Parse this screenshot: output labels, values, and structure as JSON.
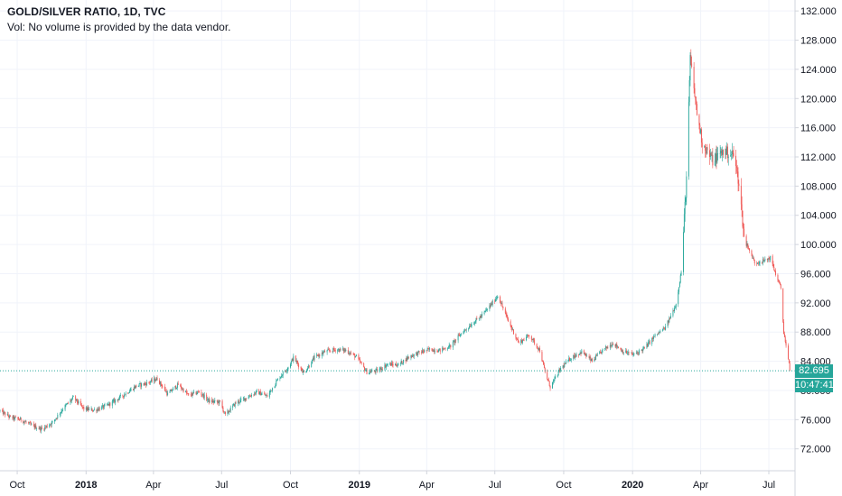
{
  "header": {
    "symbol": "GOLD/SILVER RATIO, 1D, TVC",
    "volume_note": "Vol: No volume is provided by the data vendor."
  },
  "last_price_label": "82.695",
  "countdown_label": "10:47:41",
  "colors": {
    "up": "#26a69a",
    "down": "#ef5350",
    "price_line": "#26a69a",
    "grid": "#f0f3fa",
    "axis_text": "#131722"
  },
  "chart_data": {
    "type": "line",
    "title": "GOLD/SILVER RATIO, 1D, TVC",
    "x_tick_labels": [
      {
        "label": "Oct",
        "date": "2017-10-01",
        "bold": false
      },
      {
        "label": "2018",
        "date": "2018-01-01",
        "bold": true
      },
      {
        "label": "Apr",
        "date": "2018-04-01",
        "bold": false
      },
      {
        "label": "Jul",
        "date": "2018-07-01",
        "bold": false
      },
      {
        "label": "Oct",
        "date": "2018-10-01",
        "bold": false
      },
      {
        "label": "2019",
        "date": "2019-01-01",
        "bold": true
      },
      {
        "label": "Apr",
        "date": "2019-04-01",
        "bold": false
      },
      {
        "label": "Jul",
        "date": "2019-07-01",
        "bold": false
      },
      {
        "label": "Oct",
        "date": "2019-10-01",
        "bold": false
      },
      {
        "label": "2020",
        "date": "2020-01-01",
        "bold": true
      },
      {
        "label": "Apr",
        "date": "2020-04-01",
        "bold": false
      },
      {
        "label": "Jul",
        "date": "2020-07-01",
        "bold": false
      }
    ],
    "y_tick_labels": [
      "72.000",
      "76.000",
      "80.000",
      "84.000",
      "88.000",
      "92.000",
      "96.000",
      "100.000",
      "104.000",
      "108.000",
      "112.000",
      "116.000",
      "120.000",
      "124.000",
      "128.000",
      "132.000"
    ],
    "ylim": [
      69.0,
      133.5
    ],
    "xlim": [
      "2017-09-08",
      "2020-08-05"
    ],
    "grid": true,
    "legend": "none",
    "last_value": 82.695,
    "series": [
      {
        "values": [
          [
            "2017-09-08",
            77.2
          ],
          [
            "2017-09-22",
            76.3
          ],
          [
            "2017-10-06",
            76.0
          ],
          [
            "2017-10-20",
            75.2
          ],
          [
            "2017-11-03",
            74.7
          ],
          [
            "2017-11-17",
            75.6
          ],
          [
            "2017-12-01",
            77.5
          ],
          [
            "2017-12-15",
            79.0
          ],
          [
            "2017-12-29",
            77.5
          ],
          [
            "2018-01-12",
            77.3
          ],
          [
            "2018-01-26",
            77.8
          ],
          [
            "2018-02-09",
            78.6
          ],
          [
            "2018-02-23",
            79.6
          ],
          [
            "2018-03-09",
            80.6
          ],
          [
            "2018-03-23",
            81.0
          ],
          [
            "2018-04-06",
            81.6
          ],
          [
            "2018-04-20",
            79.5
          ],
          [
            "2018-05-04",
            80.8
          ],
          [
            "2018-05-18",
            79.3
          ],
          [
            "2018-06-01",
            79.8
          ],
          [
            "2018-06-15",
            78.5
          ],
          [
            "2018-06-29",
            78.4
          ],
          [
            "2018-07-06",
            76.6
          ],
          [
            "2018-07-20",
            78.3
          ],
          [
            "2018-08-03",
            79.0
          ],
          [
            "2018-08-17",
            79.8
          ],
          [
            "2018-08-31",
            79.2
          ],
          [
            "2018-09-14",
            81.5
          ],
          [
            "2018-09-28",
            83.2
          ],
          [
            "2018-10-05",
            84.5
          ],
          [
            "2018-10-19",
            82.4
          ],
          [
            "2018-11-02",
            84.5
          ],
          [
            "2018-11-16",
            85.3
          ],
          [
            "2018-11-30",
            85.6
          ],
          [
            "2018-12-14",
            85.5
          ],
          [
            "2018-12-28",
            84.6
          ],
          [
            "2019-01-11",
            82.5
          ],
          [
            "2019-01-25",
            82.7
          ],
          [
            "2019-02-08",
            83.6
          ],
          [
            "2019-02-22",
            83.5
          ],
          [
            "2019-03-08",
            84.6
          ],
          [
            "2019-03-22",
            85.2
          ],
          [
            "2019-04-05",
            85.6
          ],
          [
            "2019-04-19",
            85.5
          ],
          [
            "2019-05-03",
            86.1
          ],
          [
            "2019-05-17",
            87.8
          ],
          [
            "2019-05-31",
            89.1
          ],
          [
            "2019-06-14",
            90.3
          ],
          [
            "2019-06-28",
            92.0
          ],
          [
            "2019-07-05",
            93.0
          ],
          [
            "2019-07-19",
            89.5
          ],
          [
            "2019-08-02",
            86.5
          ],
          [
            "2019-08-16",
            87.6
          ],
          [
            "2019-08-30",
            85.5
          ],
          [
            "2019-09-06",
            82.5
          ],
          [
            "2019-09-13",
            80.5
          ],
          [
            "2019-09-27",
            83.0
          ],
          [
            "2019-10-11",
            84.5
          ],
          [
            "2019-10-25",
            85.3
          ],
          [
            "2019-11-08",
            84.0
          ],
          [
            "2019-11-22",
            85.5
          ],
          [
            "2019-12-06",
            86.5
          ],
          [
            "2019-12-20",
            85.3
          ],
          [
            "2020-01-03",
            84.9
          ],
          [
            "2020-01-17",
            85.8
          ],
          [
            "2020-01-31",
            87.5
          ],
          [
            "2020-02-14",
            88.6
          ],
          [
            "2020-02-28",
            91.8
          ],
          [
            "2020-03-06",
            96.3
          ],
          [
            "2020-03-13",
            109.0
          ],
          [
            "2020-03-18",
            125.5
          ],
          [
            "2020-03-27",
            118.0
          ],
          [
            "2020-04-03",
            114.0
          ],
          [
            "2020-04-17",
            111.5
          ],
          [
            "2020-05-01",
            112.8
          ],
          [
            "2020-05-15",
            112.3
          ],
          [
            "2020-05-22",
            108.5
          ],
          [
            "2020-05-29",
            101.0
          ],
          [
            "2020-06-12",
            97.5
          ],
          [
            "2020-06-26",
            97.8
          ],
          [
            "2020-07-03",
            98.2
          ],
          [
            "2020-07-10",
            96.0
          ],
          [
            "2020-07-17",
            94.0
          ],
          [
            "2020-07-21",
            88.0
          ],
          [
            "2020-07-24",
            86.0
          ],
          [
            "2020-07-28",
            83.5
          ],
          [
            "2020-07-29",
            82.695
          ]
        ]
      }
    ]
  }
}
